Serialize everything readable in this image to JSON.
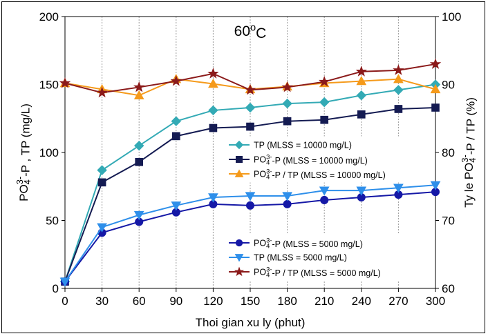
{
  "chart_data": {
    "type": "line",
    "title": "60°C",
    "title_base": "60",
    "title_sup": "o",
    "title_unit": "C",
    "xlabel": "Thoi gian xu ly (phut)",
    "ylabel_left": "PO4 3- -P , TP (mg/L)",
    "ylabel_left_parts": {
      "a": "PO",
      "sub": "4",
      "sup": "3-",
      "b": "-P , TP (mg/L)"
    },
    "ylabel_right": "Ty le PO4 3- -P / TP (%)",
    "ylabel_right_parts": {
      "a": "Ty le PO",
      "sub": "4",
      "sup": "3-",
      "b": "-P / TP (%)"
    },
    "x": [
      0,
      30,
      60,
      90,
      120,
      150,
      180,
      210,
      240,
      270,
      300
    ],
    "xticks": [
      "0",
      "30",
      "60",
      "90",
      "120",
      "150",
      "180",
      "210",
      "240",
      "270",
      "300"
    ],
    "xlim": [
      0,
      300
    ],
    "ylim_left": [
      0,
      200
    ],
    "yticks_left": [
      "0",
      "50",
      "100",
      "150",
      "200"
    ],
    "ylim_right": [
      60,
      100
    ],
    "yticks_right": [
      "60",
      "70",
      "80",
      "90",
      "100"
    ],
    "grid": "vertical",
    "series": [
      {
        "name": "TP (MLSS = 10000 mg/L)",
        "axis": "left",
        "color": "#33AAB5",
        "marker": "diamond",
        "legend_parts": {
          "a": "TP (MLSS = 10000 mg/L)"
        },
        "values": [
          5,
          87,
          105,
          123,
          131,
          133,
          136,
          137,
          142,
          146,
          150
        ]
      },
      {
        "name": "PO4 3- -P (MLSS = 10000 mg/L)",
        "axis": "left",
        "color": "#141B52",
        "marker": "square",
        "legend_parts": {
          "a": "PO",
          "sub": "4",
          "sup": "3-",
          "b": "-P (MLSS = 10000 mg/L)"
        },
        "values": [
          5,
          78,
          93,
          112,
          118,
          119,
          123,
          124,
          128,
          132,
          133
        ]
      },
      {
        "name": "PO4 3- -P / TP (MLSS = 10000 mg/L)",
        "axis": "right",
        "color": "#F59A1B",
        "marker": "triangle-up",
        "legend_parts": {
          "a": "PO",
          "sub": "4",
          "sup": "3-",
          "b": "-P / TP (MLSS = 10000 mg/L)"
        },
        "values": [
          90.2,
          89.3,
          88.4,
          90.8,
          90.1,
          89.3,
          89.7,
          90.2,
          90.5,
          90.8,
          89.3
        ]
      },
      {
        "name": "PO4 3- -P (MLSS = 5000 mg/L)",
        "axis": "left",
        "color": "#1518A6",
        "marker": "circle",
        "legend_parts": {
          "a": "PO",
          "sub": "4",
          "sup": "3-",
          "b": "-P (MLSS = 5000 mg/L)"
        },
        "values": [
          5,
          41,
          49,
          56,
          62,
          61,
          62,
          65,
          67,
          69,
          71
        ]
      },
      {
        "name": "TP (MLSS = 5000 mg/L)",
        "axis": "left",
        "color": "#2E8FEA",
        "marker": "triangle-down",
        "legend_parts": {
          "a": "TP (MLSS = 5000 mg/L)"
        },
        "values": [
          5,
          45,
          54,
          61,
          67,
          68,
          68,
          72,
          72,
          74,
          76
        ]
      },
      {
        "name": "PO4 3- -P / TP (MLSS = 5000 mg/L)",
        "axis": "right",
        "color": "#8B1A1A",
        "marker": "star",
        "legend_parts": {
          "a": "PO",
          "sub": "4",
          "sup": "3-",
          "b": "-P / TP (MLSS = 5000 mg/L)"
        },
        "values": [
          90.2,
          88.8,
          89.6,
          90.5,
          91.6,
          89.2,
          89.6,
          90.4,
          91.9,
          92.1,
          93.0
        ]
      }
    ],
    "legends": [
      {
        "position": "center-right",
        "series": [
          0,
          1,
          2
        ]
      },
      {
        "position": "bottom-right",
        "series": [
          3,
          4,
          5
        ]
      }
    ]
  }
}
